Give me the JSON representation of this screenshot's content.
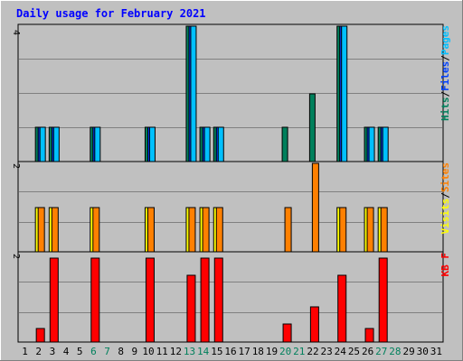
{
  "colors": {
    "background": "#c0c0c0",
    "title": "#0000ff",
    "hits": "#00805c",
    "files": "#0040ff",
    "pages": "#00c0ff",
    "visits": "#ffff00",
    "sites": "#ff8000",
    "kbytes": "#ff0000",
    "weekend": "#00805c",
    "weekday": "#000000",
    "grid": "#808080"
  },
  "chart_data": [
    {
      "type": "bar",
      "title": "Daily usage for February 2021",
      "categories": [
        "1",
        "2",
        "3",
        "4",
        "5",
        "6",
        "7",
        "8",
        "9",
        "10",
        "11",
        "12",
        "13",
        "14",
        "15",
        "16",
        "17",
        "18",
        "19",
        "20",
        "21",
        "22",
        "23",
        "24",
        "25",
        "26",
        "27",
        "28",
        "29",
        "30",
        "31"
      ],
      "weekend_days": [
        "6",
        "7",
        "13",
        "14",
        "20",
        "21",
        "27",
        "28"
      ],
      "ylim": [
        0,
        4
      ],
      "ymax_label": "4",
      "legend": {
        "placement": "right",
        "items": [
          "Pages",
          "/",
          "Files",
          "/",
          "Hits"
        ]
      },
      "series": [
        {
          "name": "Hits",
          "values": [
            0,
            1,
            1,
            0,
            0,
            1,
            0,
            0,
            0,
            1,
            0,
            0,
            4,
            1,
            1,
            0,
            0,
            0,
            0,
            1,
            0,
            2,
            0,
            4,
            0,
            1,
            1,
            0,
            0,
            0,
            0
          ]
        },
        {
          "name": "Files",
          "values": [
            0,
            1,
            1,
            0,
            0,
            1,
            0,
            0,
            0,
            1,
            0,
            0,
            4,
            1,
            1,
            0,
            0,
            0,
            0,
            0,
            0,
            0,
            0,
            4,
            0,
            1,
            1,
            0,
            0,
            0,
            0
          ]
        },
        {
          "name": "Pages",
          "values": [
            0,
            1,
            1,
            0,
            0,
            1,
            0,
            0,
            0,
            1,
            0,
            0,
            4,
            1,
            1,
            0,
            0,
            0,
            0,
            0,
            0,
            0,
            0,
            4,
            0,
            1,
            1,
            0,
            0,
            0,
            0
          ]
        }
      ]
    },
    {
      "type": "bar",
      "ylim": [
        0,
        2
      ],
      "ymax_label": "2",
      "legend": {
        "placement": "right",
        "items": [
          "Sites",
          "/",
          "Visits"
        ]
      },
      "series": [
        {
          "name": "Visits",
          "values": [
            0,
            1,
            1,
            0,
            0,
            1,
            0,
            0,
            0,
            1,
            0,
            0,
            1,
            1,
            1,
            0,
            0,
            0,
            0,
            0,
            0,
            0,
            0,
            1,
            0,
            1,
            1,
            0,
            0,
            0,
            0
          ]
        },
        {
          "name": "Sites",
          "values": [
            0,
            1,
            1,
            0,
            0,
            1,
            0,
            0,
            0,
            1,
            0,
            0,
            1,
            1,
            1,
            0,
            0,
            0,
            0,
            1,
            0,
            2,
            0,
            1,
            0,
            1,
            1,
            0,
            0,
            0,
            0
          ]
        }
      ]
    },
    {
      "type": "bar",
      "ylim": [
        0,
        2
      ],
      "ymax_label": "2",
      "legend": {
        "placement": "right",
        "items": [
          "KB F"
        ]
      },
      "series": [
        {
          "name": "KB F",
          "values": [
            0,
            0.3,
            1.9,
            0,
            0,
            1.9,
            0,
            0,
            0,
            1.9,
            0,
            0,
            1.5,
            1.9,
            1.9,
            0,
            0,
            0,
            0,
            0.4,
            0,
            0.8,
            0,
            1.5,
            0,
            0.3,
            1.9,
            0,
            0,
            0,
            0
          ]
        }
      ]
    }
  ]
}
